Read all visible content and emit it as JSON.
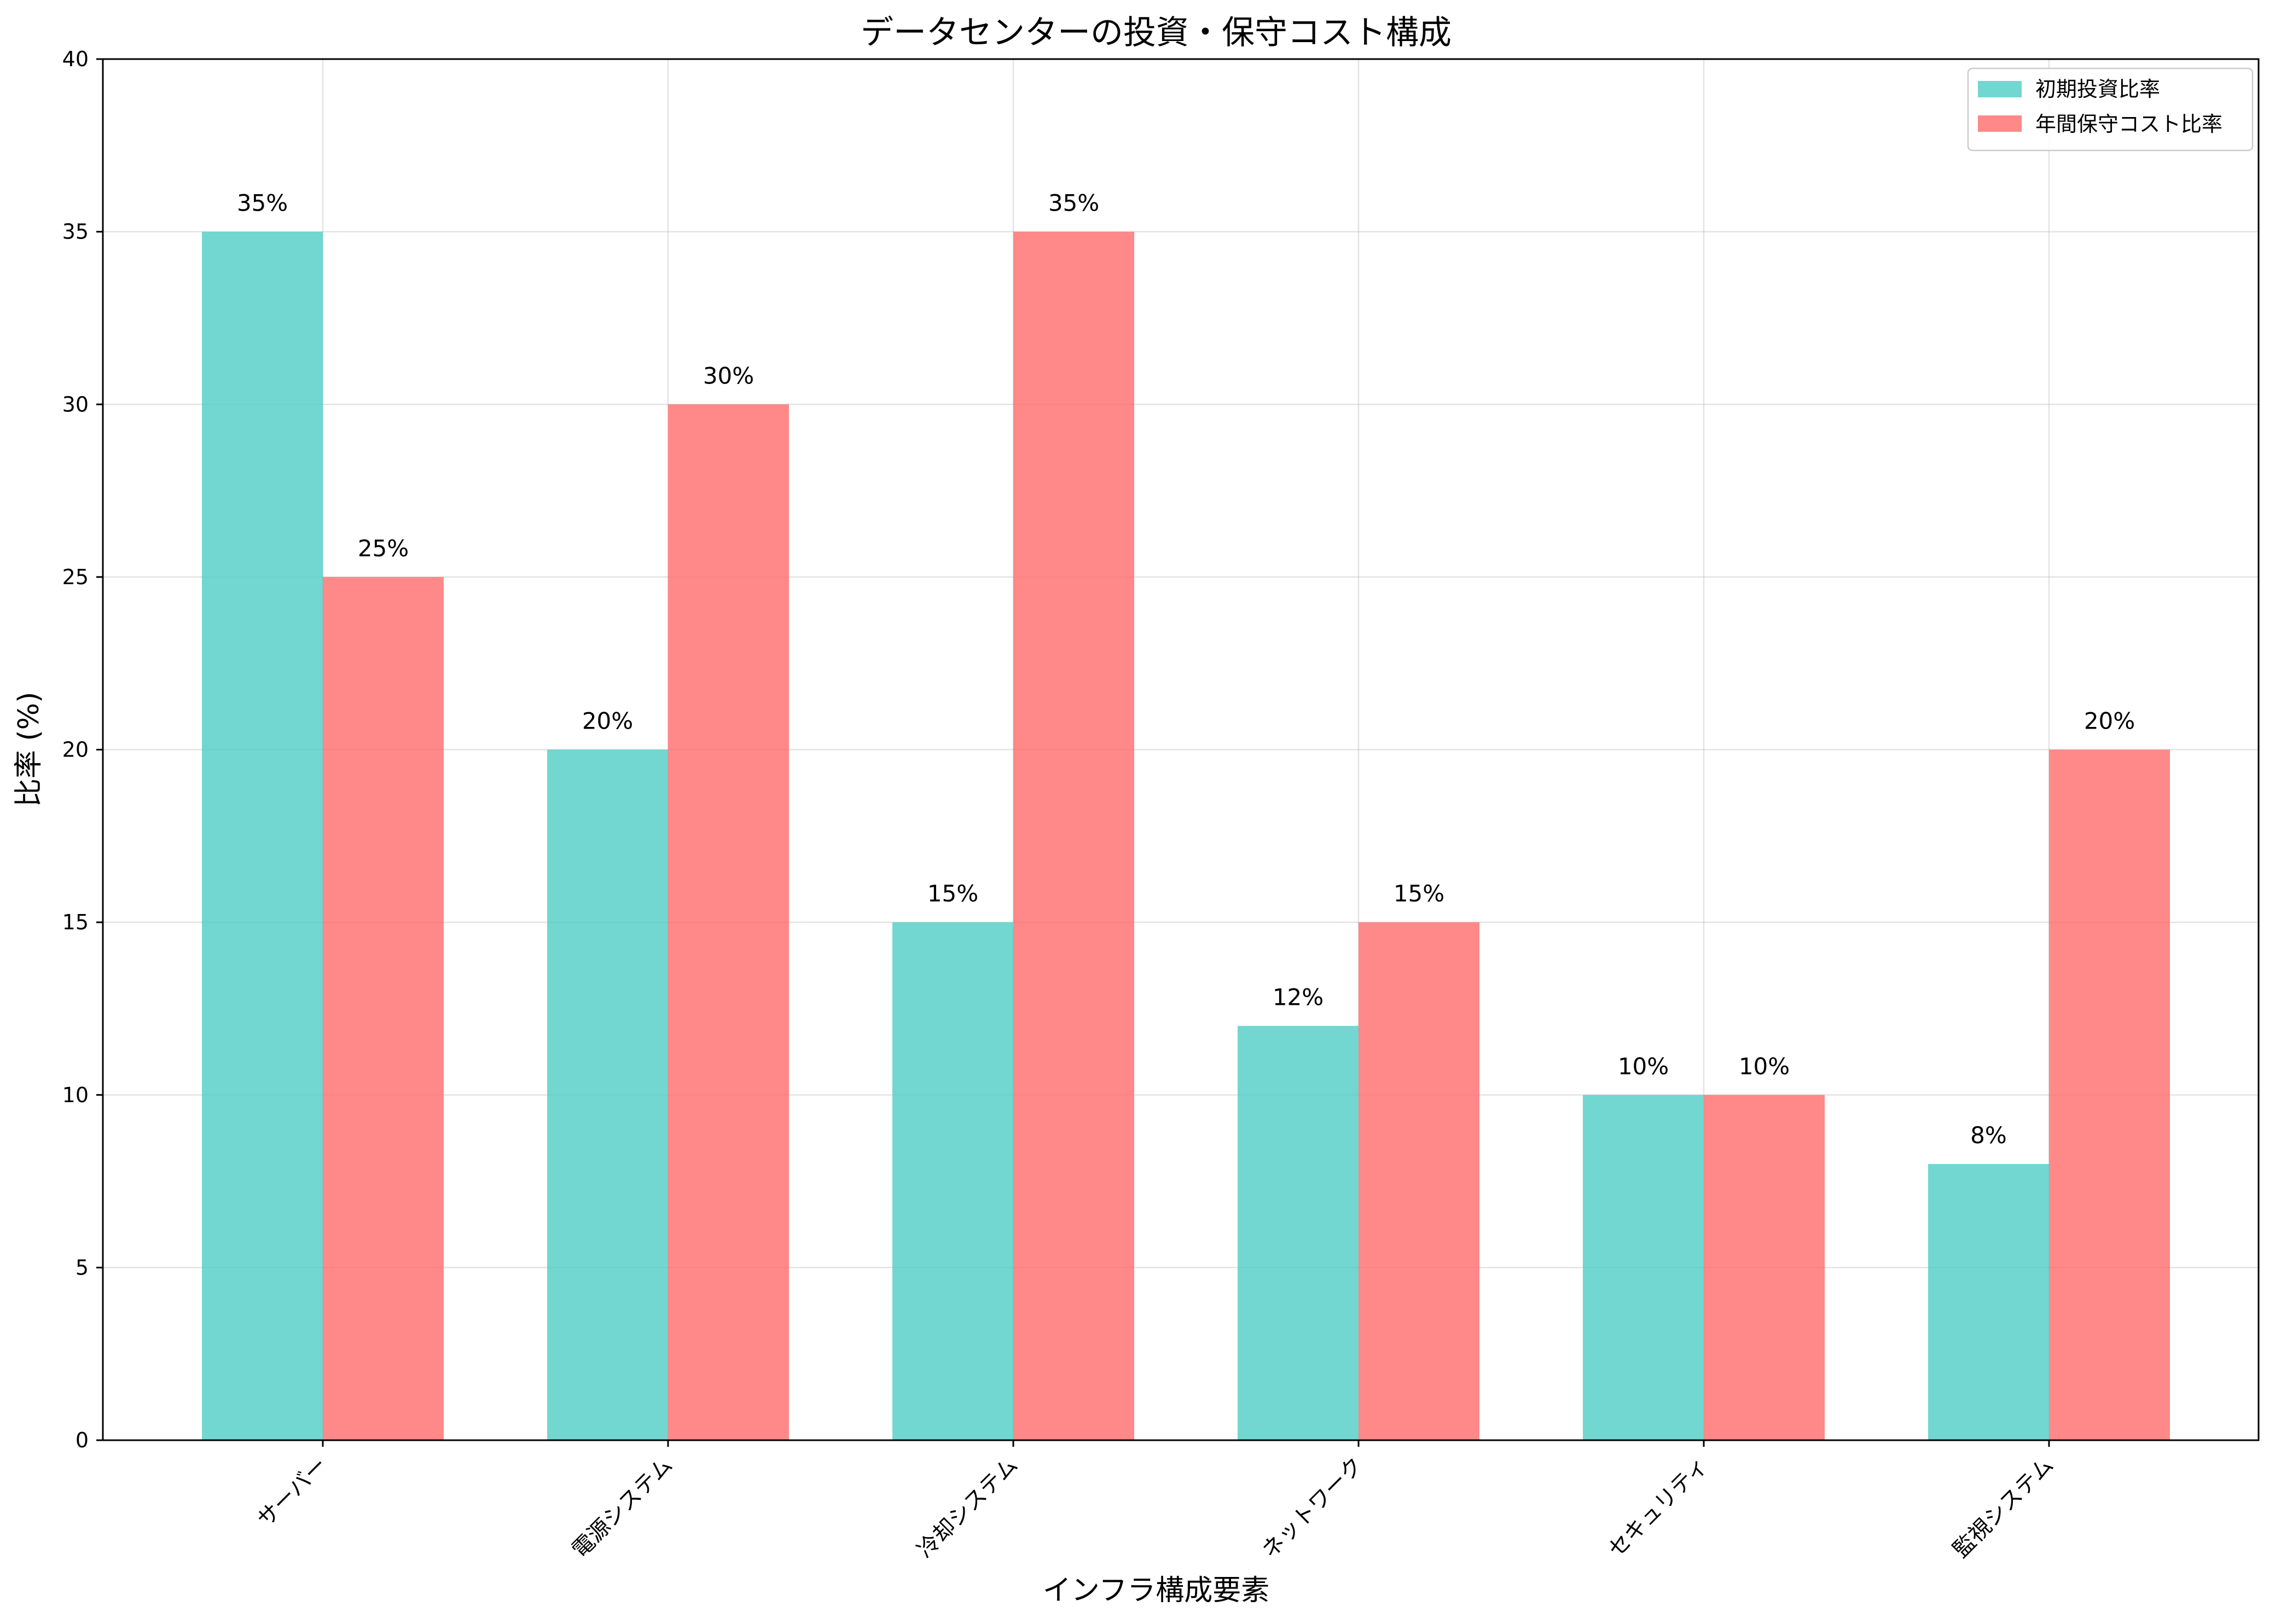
{
  "chart_data": {
    "type": "bar",
    "title": "データセンターの投資・保守コスト構成",
    "xlabel": "インフラ構成要素",
    "ylabel": "比率 (%)",
    "categories": [
      "サーバー",
      "電源システム",
      "冷却システム",
      "ネットワーク",
      "セキュリティ",
      "監視システム"
    ],
    "series": [
      {
        "name": "初期投資比率",
        "values": [
          35,
          20,
          15,
          12,
          10,
          8
        ],
        "color": "#4ecdc4"
      },
      {
        "name": "年間保守コスト比率",
        "values": [
          25,
          30,
          35,
          15,
          10,
          20
        ],
        "color": "#ff6b6b"
      }
    ],
    "value_suffix": "%",
    "ylim": [
      0,
      40
    ],
    "yticks": [
      0,
      5,
      10,
      15,
      20,
      25,
      30,
      35,
      40
    ],
    "grid": true,
    "legend_position": "top-right",
    "bar_opacity": 0.8
  }
}
